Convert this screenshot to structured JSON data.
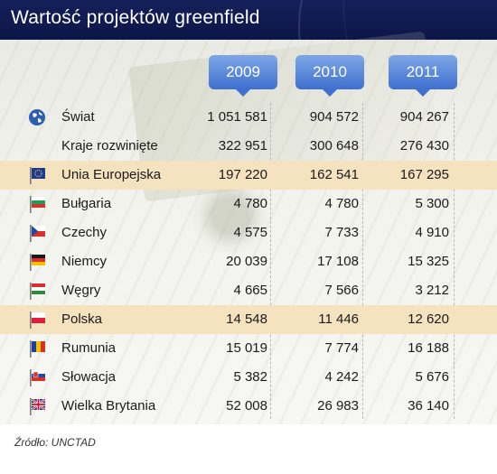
{
  "title": "Wartość projektów greenfield",
  "chart_data": {
    "type": "table",
    "columns": [
      "2009",
      "2010",
      "2011"
    ],
    "rows": [
      {
        "label": "Świat",
        "icon": "globe-icon",
        "values": [
          "1 051 581",
          "904 572",
          "904 267"
        ],
        "highlight": false
      },
      {
        "label": "Kraje rozwinięte",
        "icon": "",
        "values": [
          "322 951",
          "300 648",
          "276 430"
        ],
        "highlight": false
      },
      {
        "label": "Unia Europejska",
        "icon": "eu-flag-icon",
        "values": [
          "197 220",
          "162 541",
          "167 295"
        ],
        "highlight": true
      },
      {
        "label": "Bułgaria",
        "icon": "bulgaria-flag-icon",
        "values": [
          "4 780",
          "4 780",
          "5 300"
        ],
        "highlight": false
      },
      {
        "label": "Czechy",
        "icon": "czech-flag-icon",
        "values": [
          "4 575",
          "7 733",
          "4 910"
        ],
        "highlight": false
      },
      {
        "label": "Niemcy",
        "icon": "germany-flag-icon",
        "values": [
          "20 039",
          "17 108",
          "15 325"
        ],
        "highlight": false
      },
      {
        "label": "Węgry",
        "icon": "hungary-flag-icon",
        "values": [
          "4 665",
          "7 566",
          "3 212"
        ],
        "highlight": false
      },
      {
        "label": "Polska",
        "icon": "poland-flag-icon",
        "values": [
          "14 548",
          "11 446",
          "12 620"
        ],
        "highlight": true
      },
      {
        "label": "Rumunia",
        "icon": "romania-flag-icon",
        "values": [
          "15 019",
          "7 774",
          "16 188"
        ],
        "highlight": false
      },
      {
        "label": "Słowacja",
        "icon": "slovakia-flag-icon",
        "values": [
          "5 382",
          "4 242",
          "5 676"
        ],
        "highlight": false
      },
      {
        "label": "Wielka Brytania",
        "icon": "uk-flag-icon",
        "values": [
          "52 008",
          "26 983",
          "36 140"
        ],
        "highlight": false
      }
    ]
  },
  "source": "Źródło: UNCTAD",
  "colors": {
    "header_bg": "#14205a",
    "tab_blue": "#3f70cf",
    "highlight_row": "#f5e3bf"
  }
}
